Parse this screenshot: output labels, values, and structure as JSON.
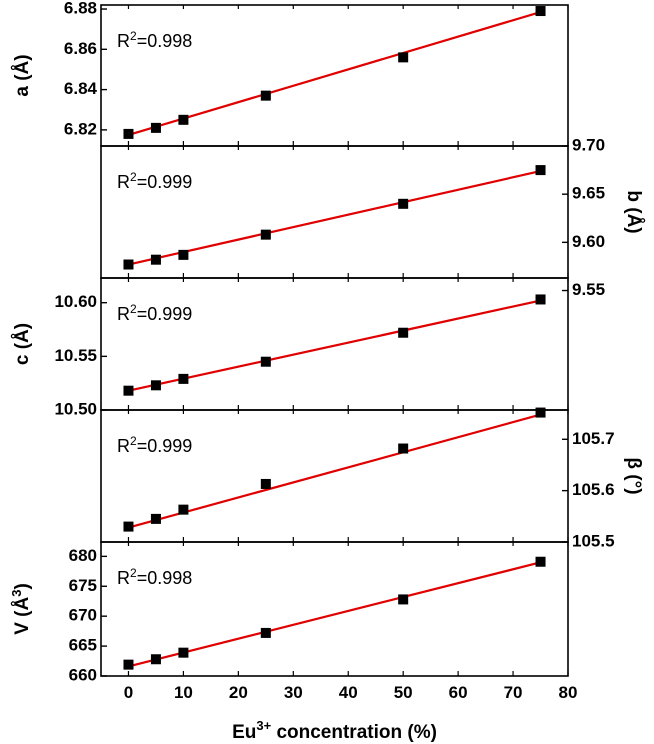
{
  "chart_data": {
    "type": "scatter",
    "x_axis": {
      "label": "Eu",
      "label_sup": "3+",
      "label_rest": " concentration (%)",
      "range": [
        -5,
        80
      ],
      "ticks": [
        0,
        10,
        20,
        30,
        40,
        50,
        60,
        70,
        80
      ]
    },
    "x": [
      0,
      5,
      10,
      25,
      50,
      75
    ],
    "fit_color": "#e00000",
    "marker_color": "#000000",
    "panels": [
      {
        "id": "a",
        "ylabel": "a (Å)",
        "ylabel_side": "left",
        "ylim": [
          6.812,
          6.882
        ],
        "ticks": [
          6.82,
          6.84,
          6.86,
          6.88
        ],
        "tick_labels": [
          "6.82",
          "6.84",
          "6.86",
          "6.88"
        ],
        "y": [
          6.818,
          6.821,
          6.825,
          6.837,
          6.856,
          6.879
        ],
        "fit": [
          6.8175,
          6.8785
        ],
        "r2_label": "R",
        "r2_value": "=0.998"
      },
      {
        "id": "b",
        "ylabel": "b (Å)",
        "ylabel_side": "right",
        "ylim": [
          9.563,
          9.7
        ],
        "ticks": [
          9.55,
          9.6,
          9.65,
          9.7
        ],
        "tick_labels": [
          "9.55",
          "9.60",
          "9.65",
          "9.70"
        ],
        "y": [
          9.577,
          9.582,
          9.587,
          9.608,
          9.64,
          9.675
        ],
        "fit": [
          9.577,
          9.674
        ],
        "r2_label": "R",
        "r2_value": "=0.999"
      },
      {
        "id": "c",
        "ylabel": "c (Å)",
        "ylabel_side": "left",
        "ylim": [
          10.5,
          10.623
        ],
        "ticks": [
          10.5,
          10.55,
          10.6
        ],
        "tick_labels": [
          "10.50",
          "10.55",
          "10.60"
        ],
        "y": [
          10.518,
          10.523,
          10.529,
          10.545,
          10.572,
          10.603
        ],
        "fit": [
          10.518,
          10.602
        ],
        "r2_label": "R",
        "r2_value": "=0.999"
      },
      {
        "id": "beta",
        "ylabel": "β (°)",
        "ylabel_side": "right",
        "ylim": [
          105.5,
          105.757
        ],
        "ticks": [
          105.5,
          105.6,
          105.7
        ],
        "tick_labels": [
          "105.5",
          "105.6",
          "105.7"
        ],
        "y": [
          105.53,
          105.545,
          105.563,
          105.613,
          105.682,
          105.752
        ],
        "fit": [
          105.528,
          105.748
        ],
        "r2_label": "R",
        "r2_value": "=0.999"
      },
      {
        "id": "V",
        "ylabel": "V (Å",
        "ylabel_sup": "3",
        "ylabel_end": ")",
        "ylabel_side": "left",
        "ylim": [
          660,
          682.4
        ],
        "ticks": [
          660,
          665,
          670,
          675,
          680
        ],
        "tick_labels": [
          "660",
          "665",
          "670",
          "675",
          "680"
        ],
        "y": [
          661.9,
          662.8,
          663.9,
          667.2,
          672.8,
          679.1
        ],
        "fit": [
          661.6,
          679.0
        ],
        "r2_label": "R",
        "r2_value": "=0.998"
      }
    ]
  }
}
